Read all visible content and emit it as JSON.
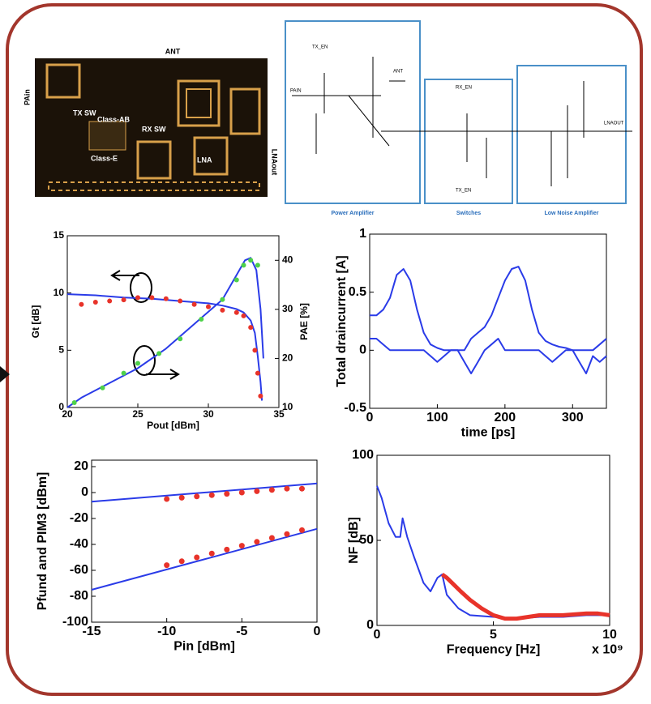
{
  "die_photo": {
    "labels": [
      "ANT",
      "PAin",
      "LNAout",
      "TX SW",
      "Class-AB",
      "RX SW",
      "Class-E",
      "LNA"
    ]
  },
  "schematic": {
    "blocks": [
      "Power Amplifier",
      "Switches",
      "Low Noise Amplifier"
    ],
    "labels": [
      "TX_EN",
      "ANT",
      "RX_EN",
      "TX_EN",
      "LNAOUT",
      "PAIN"
    ]
  },
  "chart_data": [
    {
      "type": "line",
      "x_label": "Pout [dBm]",
      "y_label": "Gt [dB]",
      "y2_label": "PAE [%]",
      "xlim": [
        20,
        35
      ],
      "xticks": [
        20,
        25,
        30,
        35
      ],
      "ylim": [
        0,
        15
      ],
      "yticks": [
        0,
        5,
        10,
        15
      ],
      "y2lim": [
        10,
        45
      ],
      "y2ticks": [
        10,
        20,
        30,
        40
      ],
      "series": [
        {
          "color": "#2a3be8",
          "mode": "line",
          "x": [
            20,
            22,
            24,
            26,
            28,
            30,
            31,
            32,
            32.5,
            33,
            33.3,
            33.5,
            33.7,
            33.8
          ],
          "values": [
            9.9,
            9.8,
            9.6,
            9.5,
            9.3,
            9.1,
            8.9,
            8.6,
            8.3,
            7.6,
            6.5,
            4.5,
            2.2,
            0.6
          ]
        },
        {
          "color": "#e8332a",
          "mode": "markers",
          "x": [
            21,
            22,
            23,
            24,
            25,
            26,
            27,
            28,
            29,
            30,
            31,
            32,
            32.5,
            33,
            33.3,
            33.5,
            33.7
          ],
          "values": [
            9,
            9.2,
            9.3,
            9.4,
            9.6,
            9.6,
            9.5,
            9.3,
            9,
            8.8,
            8.5,
            8.3,
            8,
            7,
            5,
            3,
            1
          ]
        },
        {
          "color": "#2a3be8",
          "mode": "line",
          "axis": "y2",
          "x": [
            20,
            21,
            23,
            25,
            27,
            29,
            31,
            32,
            32.6,
            33,
            33.4,
            33.7,
            33.9
          ],
          "values": [
            10,
            12,
            15,
            18,
            22,
            27,
            32,
            37,
            40,
            40.5,
            38,
            30,
            20
          ]
        },
        {
          "color": "#4ed14a",
          "mode": "markers",
          "axis": "y2",
          "x": [
            20.5,
            22.5,
            24,
            25,
            26.5,
            28,
            29.5,
            31,
            32,
            32.5,
            33,
            33.5
          ],
          "values": [
            11,
            14,
            17,
            19,
            21,
            24,
            28,
            32,
            36,
            39,
            40,
            39
          ]
        }
      ]
    },
    {
      "type": "line",
      "x_label": "time [ps]",
      "y_label": "Total draincurrent  [A]",
      "xlim": [
        0,
        350
      ],
      "xticks": [
        0,
        100,
        200,
        300
      ],
      "ylim": [
        -0.5,
        1
      ],
      "yticks": [
        -0.5,
        0,
        0.5,
        1
      ],
      "x": [
        0,
        10,
        20,
        30,
        40,
        50,
        60,
        70,
        80,
        90,
        100,
        110,
        120,
        130,
        140,
        150,
        160,
        170,
        180,
        190,
        200,
        210,
        220,
        230,
        240,
        250,
        260,
        270,
        280,
        290,
        300,
        310,
        320,
        330,
        340,
        350
      ],
      "series": [
        {
          "color": "#2a3be8",
          "mode": "line",
          "values": [
            0.3,
            0.3,
            0.35,
            0.45,
            0.65,
            0.7,
            0.6,
            0.35,
            0.15,
            0.05,
            0.02,
            0,
            0,
            0,
            0,
            0.1,
            0.15,
            0.2,
            0.3,
            0.45,
            0.6,
            0.7,
            0.72,
            0.6,
            0.35,
            0.15,
            0.08,
            0.05,
            0.03,
            0.02,
            0,
            0,
            0,
            0,
            0.05,
            0.1
          ]
        },
        {
          "color": "#2a3be8",
          "mode": "line",
          "values": [
            0.1,
            0.1,
            0.05,
            0,
            0,
            0,
            0,
            0,
            0,
            -0.05,
            -0.1,
            -0.05,
            0,
            0,
            -0.1,
            -0.2,
            -0.1,
            0,
            0.05,
            0.1,
            0,
            0,
            0,
            0,
            0,
            0,
            -0.05,
            -0.1,
            -0.05,
            0,
            0,
            -0.1,
            -0.2,
            -0.05,
            -0.1,
            -0.05
          ]
        }
      ]
    },
    {
      "type": "line",
      "x_label": "Pin [dBm]",
      "y_label": "Pfund and PIM3 [dBm]",
      "xlim": [
        -15,
        0
      ],
      "xticks": [
        -15,
        -10,
        -5,
        0
      ],
      "ylim": [
        -100,
        25
      ],
      "yticks": [
        -100,
        -80,
        -60,
        -40,
        -20,
        0,
        20
      ],
      "series": [
        {
          "color": "#2a3be8",
          "mode": "line",
          "x": [
            -15,
            0
          ],
          "values": [
            -7,
            7
          ]
        },
        {
          "color": "#2a3be8",
          "mode": "line",
          "x": [
            -15,
            0
          ],
          "values": [
            -75,
            -28
          ]
        },
        {
          "color": "#e8332a",
          "mode": "markers",
          "x": [
            -10,
            -9,
            -8,
            -7,
            -6,
            -5,
            -4,
            -3,
            -2,
            -1
          ],
          "values": [
            -5,
            -4,
            -3,
            -2,
            -1,
            0,
            1,
            2,
            3,
            3
          ]
        },
        {
          "color": "#e8332a",
          "mode": "markers",
          "x": [
            -10,
            -9,
            -8,
            -7,
            -6,
            -5,
            -4,
            -3,
            -2,
            -1
          ],
          "values": [
            -56,
            -53,
            -50,
            -47,
            -44,
            -41,
            -38,
            -35,
            -32,
            -29
          ]
        }
      ]
    },
    {
      "type": "line",
      "x_label": "Frequency [Hz]",
      "y_label": "NF [dB]",
      "x_exponent": "x 10⁹",
      "xlim": [
        0,
        10
      ],
      "xticks": [
        0,
        5,
        10
      ],
      "ylim": [
        0,
        100
      ],
      "yticks": [
        0,
        50,
        100
      ],
      "series": [
        {
          "color": "#2a3be8",
          "mode": "line",
          "x": [
            0,
            0.2,
            0.5,
            0.8,
            1,
            1.1,
            1.3,
            1.6,
            2,
            2.3,
            2.6,
            2.8,
            3,
            3.5,
            4,
            5,
            6,
            7,
            8,
            9,
            10
          ],
          "values": [
            82,
            75,
            60,
            52,
            52,
            63,
            52,
            40,
            25,
            20,
            28,
            30,
            18,
            10,
            6,
            5,
            4,
            5,
            5,
            6,
            6
          ]
        },
        {
          "color": "#e8332a",
          "mode": "thick",
          "x": [
            2.8,
            3,
            3.3,
            3.6,
            4,
            4.5,
            5,
            5.5,
            6,
            6.5,
            7,
            8,
            9,
            9.5,
            10
          ],
          "values": [
            30,
            28,
            24,
            20,
            15,
            10,
            6,
            4,
            4,
            5,
            6,
            6,
            7,
            7,
            6
          ]
        }
      ]
    }
  ]
}
